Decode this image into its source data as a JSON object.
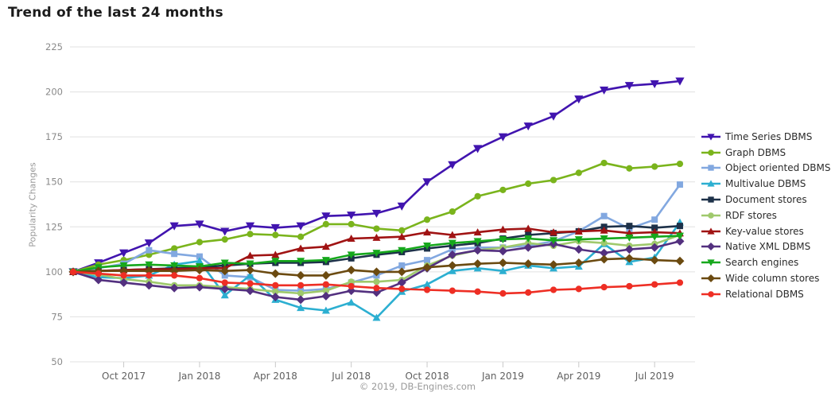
{
  "title": "Trend of the last 24 months",
  "footer": "© 2019, DB-Engines.com",
  "axis": {
    "ylabel": "Popularity Changes",
    "grid_color": "#e0e0e0",
    "ytick_color": "#8a8a8a",
    "xtick_color": "#606060"
  },
  "chart_data": {
    "type": "line",
    "title": "Trend of the last 24 months",
    "ylabel": "Popularity Changes",
    "ylim": [
      50,
      225
    ],
    "yticks": [
      50,
      75,
      100,
      125,
      150,
      175,
      200,
      225
    ],
    "grid": true,
    "legend_position": "right",
    "x_start": "Aug 2017",
    "x_end": "Aug 2019",
    "n_points": 25,
    "xticks": [
      {
        "label": "Oct 2017",
        "m": 2
      },
      {
        "label": "Jan 2018",
        "m": 5
      },
      {
        "label": "Apr 2018",
        "m": 8
      },
      {
        "label": "Jul 2018",
        "m": 11
      },
      {
        "label": "Oct 2018",
        "m": 14
      },
      {
        "label": "Jan 2019",
        "m": 17
      },
      {
        "label": "Apr 2019",
        "m": 20
      },
      {
        "label": "Jul 2019",
        "m": 23
      }
    ],
    "series": [
      {
        "name": "Time Series DBMS",
        "color": "#4114af",
        "marker": "triangle-down",
        "values": [
          100,
          105,
          110.5,
          116,
          125.5,
          126.5,
          122.5,
          125.5,
          124.5,
          125.5,
          131,
          131.5,
          132.5,
          136.5,
          150,
          159.5,
          168.5,
          175,
          181,
          186.5,
          196,
          201,
          203.5,
          204.5,
          206
        ]
      },
      {
        "name": "Graph DBMS",
        "color": "#7ab41c",
        "marker": "circle",
        "values": [
          100,
          104,
          106.5,
          109.5,
          113,
          116.5,
          118,
          121,
          120.5,
          119.5,
          126.5,
          126.5,
          124,
          123,
          129,
          133.5,
          142,
          145.5,
          149,
          151,
          155,
          160.5,
          157.5,
          158.5,
          160
        ]
      },
      {
        "name": "Object oriented DBMS",
        "color": "#82a8e0",
        "marker": "square",
        "values": [
          100,
          102,
          104.5,
          112,
          110,
          108.5,
          98,
          97,
          90,
          89.5,
          90.5,
          94,
          98,
          103.5,
          106.5,
          112.5,
          113.5,
          113.5,
          114.5,
          117,
          122.5,
          131,
          124,
          129,
          148.5
        ]
      },
      {
        "name": "Multivalue DBMS",
        "color": "#2cafd1",
        "marker": "triangle-up",
        "values": [
          100,
          97,
          96.5,
          98,
          104,
          106,
          87,
          98,
          84.5,
          80,
          78.5,
          83,
          74.5,
          89,
          93,
          100.5,
          102,
          100.5,
          103.5,
          102,
          103,
          115.5,
          105.5,
          108,
          127.5
        ]
      },
      {
        "name": "Document stores",
        "color": "#1d3149",
        "marker": "square",
        "values": [
          100,
          100.5,
          101,
          101.5,
          102,
          102.5,
          103.5,
          104.5,
          105,
          105,
          105.5,
          107.5,
          109.5,
          111,
          113,
          114.5,
          116,
          118.5,
          120.5,
          121.5,
          122.5,
          125,
          125.5,
          124.5,
          125.5
        ]
      },
      {
        "name": "RDF stores",
        "color": "#9fc96c",
        "marker": "circle",
        "values": [
          100,
          98.5,
          96,
          94.5,
          92.5,
          92.5,
          91.5,
          90.5,
          89,
          88,
          89.5,
          94.5,
          94.5,
          95.5,
          103.5,
          109,
          112,
          113.5,
          116,
          114.5,
          117,
          116,
          114.5,
          115.5,
          120.5
        ]
      },
      {
        "name": "Key-value stores",
        "color": "#a01313",
        "marker": "triangle-up",
        "values": [
          100,
          100.5,
          101,
          101.5,
          101.5,
          102,
          102,
          109,
          109.5,
          113,
          114,
          118.5,
          119,
          119.5,
          122,
          120.5,
          122,
          123.5,
          124,
          122,
          122.5,
          123,
          121.5,
          122,
          121.5
        ]
      },
      {
        "name": "Native XML DBMS",
        "color": "#53307f",
        "marker": "diamond",
        "values": [
          100,
          95.5,
          94,
          92.5,
          91,
          91.5,
          90.5,
          89.5,
          86,
          84.5,
          86.5,
          89.5,
          88.5,
          94,
          102,
          109.5,
          112,
          111.5,
          113.5,
          115.5,
          112.5,
          110.5,
          112.5,
          113.5,
          117
        ]
      },
      {
        "name": "Search engines",
        "color": "#16a81c",
        "marker": "triangle-down",
        "values": [
          100,
          102.5,
          103.5,
          104,
          103.5,
          103,
          105,
          104.5,
          106,
          106,
          106.5,
          109.5,
          110.5,
          112,
          114.5,
          116,
          117,
          118,
          118.5,
          117.5,
          118,
          118.5,
          119,
          119.5,
          120
        ]
      },
      {
        "name": "Wide column stores",
        "color": "#6b4a10",
        "marker": "diamond",
        "values": [
          100,
          100.5,
          100.5,
          100.5,
          100.5,
          101,
          100.5,
          101,
          99,
          98,
          98,
          101,
          100,
          100,
          102.5,
          103.5,
          104.5,
          105,
          104.5,
          104,
          105,
          107,
          107.5,
          106.5,
          106
        ]
      },
      {
        "name": "Relational DBMS",
        "color": "#ee2e24",
        "marker": "circle",
        "values": [
          100,
          99,
          98,
          98,
          98,
          96.5,
          94,
          93.5,
          92.5,
          92.5,
          93,
          92,
          91,
          90.5,
          90,
          89.5,
          89,
          88,
          88.5,
          90,
          90.5,
          91.5,
          92,
          93,
          94
        ]
      }
    ]
  }
}
